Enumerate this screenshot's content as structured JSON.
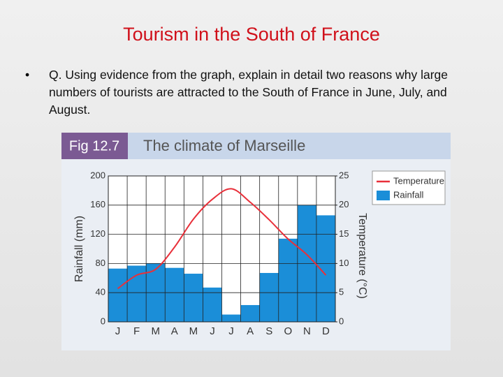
{
  "slide": {
    "title": "Tourism in the South of France",
    "bullet": "Q. Using evidence from the graph, explain in detail two reasons why large numbers of tourists are attracted to the South of France in June, July, and August."
  },
  "chart_data": {
    "type": "combo",
    "figure": "Fig 12.7",
    "title": "The climate of Marseille",
    "categories": [
      "J",
      "F",
      "M",
      "A",
      "M",
      "J",
      "J",
      "A",
      "S",
      "O",
      "N",
      "D"
    ],
    "series": [
      {
        "name": "Temperature",
        "type": "line",
        "axis": "y2",
        "color": "#e8303a",
        "values": [
          5.7,
          8,
          9,
          12.8,
          17.6,
          21,
          22.8,
          20.5,
          17.5,
          14.2,
          11.5,
          8
        ]
      },
      {
        "name": "Rainfall",
        "type": "bar",
        "color": "#1b8ed8",
        "values": [
          73,
          77,
          80,
          74,
          66,
          47,
          10,
          23,
          67,
          114,
          160,
          146
        ]
      }
    ],
    "ylabel": "Rainfall (mm)",
    "y2label": "Temperature (°C)",
    "ylim": [
      0,
      200
    ],
    "yticks": [
      0,
      40,
      80,
      120,
      160,
      200
    ],
    "y2lim": [
      0,
      25
    ],
    "y2ticks": [
      0,
      5,
      10,
      15,
      20,
      25
    ],
    "grid": true
  }
}
